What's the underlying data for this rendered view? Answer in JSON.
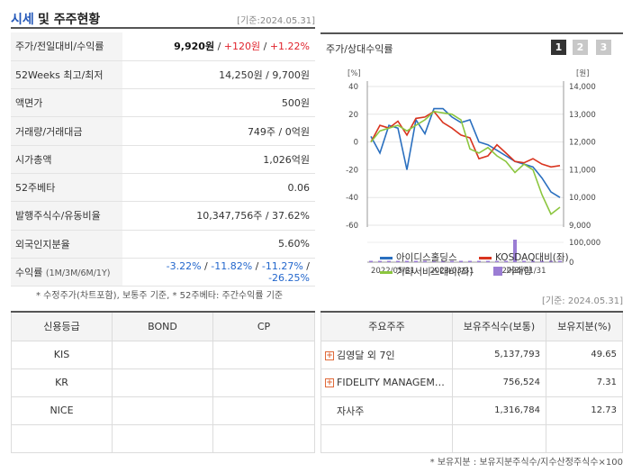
{
  "header": {
    "title_accent": "시세",
    "title_rest": "및 주주현황",
    "date": "[기준:2024.05.31]"
  },
  "info": {
    "price_label": "주가/전일대비/수익률",
    "price": "9,920원",
    "change": "+120원",
    "change_pct": "+1.22%",
    "week52_label": "52Weeks 최고/최저",
    "week52": "14,250원 / 9,700원",
    "par_label": "액면가",
    "par": "500원",
    "volume_label": "거래량/거래대금",
    "volume": "749주 / 0억원",
    "mcap_label": "시가총액",
    "mcap": "1,026억원",
    "beta_label": "52주베타",
    "beta": "0.06",
    "shares_label": "발행주식수/유동비율",
    "shares": "10,347,756주 / 37.62%",
    "foreign_label": "외국인지분율",
    "foreign": "5.60%",
    "return_label": "수익률",
    "return_periods": "(1M/3M/6M/1Y)",
    "r1": "-3.22%",
    "r3": "-11.82%",
    "r6": "-11.27%",
    "r12": "-26.25%",
    "sep": " / "
  },
  "footnote": "* 수정주가(차트포함), 보통주 기준, * 52주베타: 주간수익률 기준",
  "chart": {
    "title": "주가/상대수익률",
    "pages": [
      "1",
      "2",
      "3"
    ],
    "left_unit": "[%]",
    "right_unit": "[원]",
    "legend": {
      "s1": "아이디스홀딩스",
      "s2": "KOSDAQ대비(좌)",
      "s3": "기타서비스대비(좌)",
      "s4": "거래량"
    }
  },
  "chart_data": {
    "type": "line",
    "x_ticks": [
      "2022/05/31",
      "2023/03/31",
      "2024/01/31"
    ],
    "y_left_ticks": [
      40,
      20,
      0,
      -20,
      -40,
      -60
    ],
    "y_right_ticks": [
      "14,000",
      "13,000",
      "12,000",
      "11,000",
      "10,000",
      "9,000"
    ],
    "volume_ticks": [
      "100,000",
      "0"
    ],
    "ylim_left": [
      -60,
      40
    ],
    "ylim_right": [
      9000,
      14000
    ],
    "series": [
      {
        "name": "아이디스홀딩스",
        "color": "#2a6fbf",
        "axis": "right",
        "values": [
          12200,
          11600,
          12600,
          12500,
          11000,
          12800,
          12300,
          13200,
          13200,
          12900,
          12700,
          12800,
          12000,
          11900,
          11700,
          11500,
          11300,
          11200,
          11100,
          10700,
          10200,
          10000
        ]
      },
      {
        "name": "KOSDAQ대비(좌)",
        "color": "#d9341f",
        "axis": "left",
        "values": [
          0,
          12,
          10,
          15,
          5,
          17,
          18,
          22,
          14,
          10,
          5,
          3,
          -12,
          -10,
          -2,
          -8,
          -14,
          -15,
          -12,
          -16,
          -18,
          -17
        ]
      },
      {
        "name": "기타서비스대비(좌)",
        "color": "#8cc63f",
        "axis": "left",
        "values": [
          0,
          8,
          10,
          12,
          8,
          12,
          16,
          22,
          21,
          20,
          16,
          -5,
          -8,
          -4,
          -10,
          -14,
          -22,
          -16,
          -20,
          -38,
          -52,
          -47
        ]
      }
    ],
    "volume": {
      "name": "거래량",
      "color": "#9b7dd4",
      "values": [
        5000,
        4000,
        3000,
        2000,
        3000,
        2000,
        5000,
        3000,
        2000,
        2500,
        3000,
        2000,
        2000,
        2500,
        2000,
        3000,
        100000,
        2000,
        3000,
        4000,
        3000,
        2000
      ]
    }
  },
  "date2": "[기준: 2024.05.31]",
  "credit": {
    "headers": [
      "신용등급",
      "BOND",
      "CP"
    ],
    "rows": [
      [
        "KIS",
        "",
        ""
      ],
      [
        "KR",
        "",
        ""
      ],
      [
        "NICE",
        "",
        ""
      ],
      [
        "",
        "",
        ""
      ]
    ]
  },
  "holders": {
    "headers": [
      "주요주주",
      "보유주식수(보통)",
      "보유지분(%)"
    ],
    "rows": [
      {
        "name": "김영달 외 7인",
        "shares": "5,137,793",
        "pct": "49.65",
        "expand": true
      },
      {
        "name": "FIDELITY MANAGEM…",
        "shares": "756,524",
        "pct": "7.31",
        "expand": true
      },
      {
        "name": "자사주",
        "shares": "1,316,784",
        "pct": "12.73",
        "expand": false
      },
      {
        "name": "",
        "shares": "",
        "pct": "",
        "expand": false
      }
    ]
  },
  "footnote2": "* 보유지분 : 보유지분주식수/지수산정주식수×100"
}
